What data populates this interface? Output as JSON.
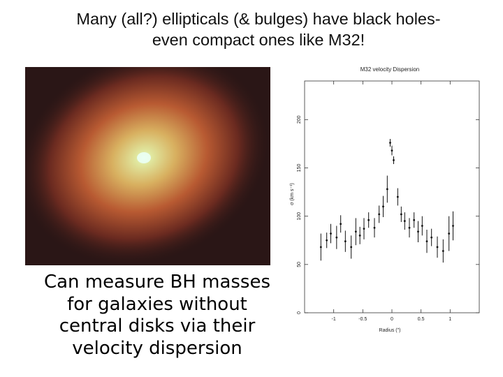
{
  "slide": {
    "title_line1": "Many (all?) ellipticals (& bulges) have black holes-",
    "title_line2": "even compact ones like M32!",
    "caption_lines": [
      "Can measure BH masses",
      "for galaxies without",
      "central disks via their",
      "velocity dispersion"
    ]
  },
  "galaxy_image": {
    "description_name": "M32 galaxy image",
    "colors": {
      "background": "#2a1616",
      "outer": "#8a2a1c",
      "middle": "#c86a3a",
      "core": "#e8d58a",
      "nucleus": "#e8fff2"
    }
  },
  "chart_data": {
    "type": "scatter",
    "title": "M32 velocity Dispersion",
    "xlabel": "Radius (\")",
    "ylabel": "σ (km s⁻¹)",
    "xlim": [
      -1.5,
      1.5
    ],
    "ylim": [
      0,
      240
    ],
    "x_ticks": [
      "-1",
      "-0.5",
      "0",
      "0.5",
      "1"
    ],
    "y_ticks": [
      "0",
      "50",
      "100",
      "150",
      "200"
    ],
    "points": [
      {
        "x": -1.22,
        "y": 68,
        "err": 14
      },
      {
        "x": -1.12,
        "y": 75,
        "err": 8
      },
      {
        "x": -1.05,
        "y": 82,
        "err": 10
      },
      {
        "x": -0.95,
        "y": 78,
        "err": 12
      },
      {
        "x": -0.88,
        "y": 92,
        "err": 9
      },
      {
        "x": -0.8,
        "y": 74,
        "err": 11
      },
      {
        "x": -0.7,
        "y": 68,
        "err": 12
      },
      {
        "x": -0.62,
        "y": 84,
        "err": 14
      },
      {
        "x": -0.55,
        "y": 80,
        "err": 9
      },
      {
        "x": -0.48,
        "y": 87,
        "err": 11
      },
      {
        "x": -0.4,
        "y": 96,
        "err": 8
      },
      {
        "x": -0.3,
        "y": 88,
        "err": 10
      },
      {
        "x": -0.22,
        "y": 102,
        "err": 9
      },
      {
        "x": -0.15,
        "y": 110,
        "err": 11
      },
      {
        "x": -0.08,
        "y": 128,
        "err": 14
      },
      {
        "x": -0.03,
        "y": 176,
        "err": 4
      },
      {
        "x": 0.0,
        "y": 168,
        "err": 5
      },
      {
        "x": 0.03,
        "y": 158,
        "err": 4
      },
      {
        "x": 0.1,
        "y": 120,
        "err": 9
      },
      {
        "x": 0.16,
        "y": 102,
        "err": 8
      },
      {
        "x": 0.22,
        "y": 95,
        "err": 9
      },
      {
        "x": 0.3,
        "y": 88,
        "err": 10
      },
      {
        "x": 0.38,
        "y": 96,
        "err": 8
      },
      {
        "x": 0.45,
        "y": 84,
        "err": 11
      },
      {
        "x": 0.52,
        "y": 90,
        "err": 10
      },
      {
        "x": 0.6,
        "y": 74,
        "err": 12
      },
      {
        "x": 0.68,
        "y": 78,
        "err": 9
      },
      {
        "x": 0.78,
        "y": 68,
        "err": 11
      },
      {
        "x": 0.88,
        "y": 64,
        "err": 12
      },
      {
        "x": 0.98,
        "y": 82,
        "err": 18
      },
      {
        "x": 1.05,
        "y": 90,
        "err": 15
      }
    ]
  }
}
